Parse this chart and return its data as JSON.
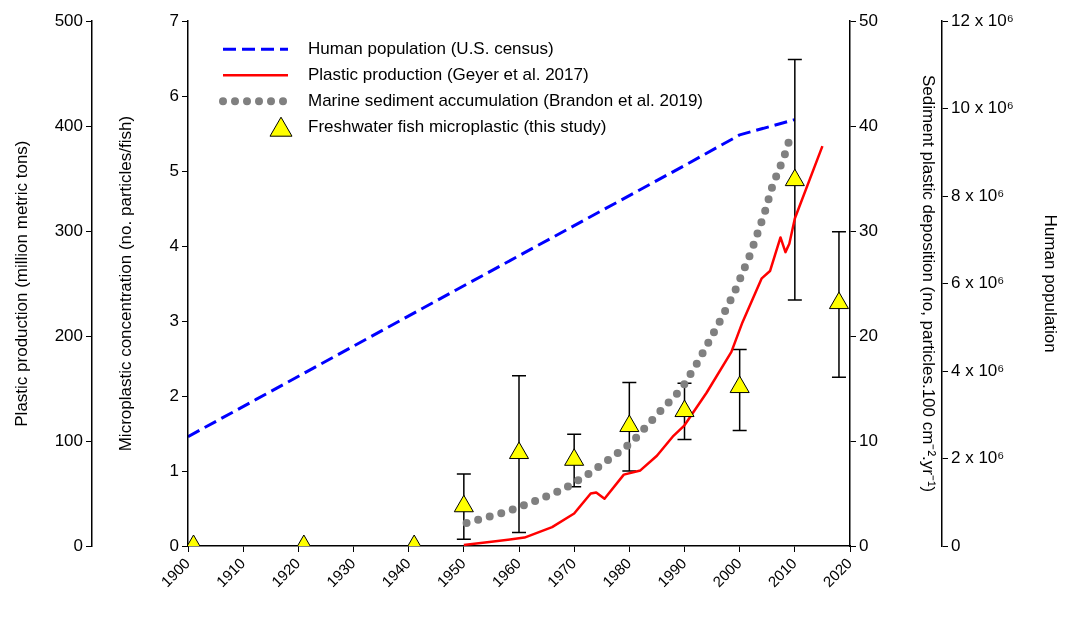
{
  "chart_data": [
    {
      "type": "line",
      "ylabel": "Human population",
      "xlim": [
        1900,
        2020
      ],
      "xticks": [
        1900,
        1910,
        1920,
        1930,
        1940,
        1950,
        1960,
        1970,
        1980,
        1990,
        2000,
        2010,
        2020
      ],
      "ylim": [
        0,
        12000000
      ],
      "yticks": [
        0,
        {
          "value": 2000000,
          "label": "2 x 10⁶"
        },
        {
          "value": 4000000,
          "label": "4 x 10⁶"
        },
        {
          "value": 6000000,
          "label": "6 x 10⁶"
        },
        {
          "value": 8000000,
          "label": "8 x 10⁶"
        },
        {
          "value": 10000000,
          "label": "10 x 10⁶"
        },
        {
          "value": 12000000,
          "label": "12 x 10⁶"
        }
      ],
      "tick_labels": "y",
      "grid": false,
      "legend": "top left",
      "series": [
        {
          "name": "Human population (U.S. census)",
          "color": "#0000ff",
          "line_style": "dashed",
          "marker": "none",
          "x": [
            1900,
            1950,
            1990,
            2000,
            2010
          ],
          "values": [
            2500000,
            5950000,
            8700000,
            9400000,
            9750000
          ]
        }
      ]
    },
    {
      "type": "line",
      "ylabel": "Plastic production (million metric tons)",
      "y2label": "Microplastic concentration (no. particles/fish)",
      "y3label": "Sediment plastic deposition (no, particles.100 cm⁻².yr⁻¹)",
      "xlim": [
        1900,
        2020
      ],
      "xticks": [
        1900,
        1910,
        1920,
        1930,
        1940,
        1950,
        1960,
        1970,
        1980,
        1990,
        2000,
        2010,
        2020
      ],
      "ylim": [
        0,
        500
      ],
      "yticks": [
        0,
        100,
        200,
        300,
        400,
        500
      ],
      "y2lim": [
        0,
        7
      ],
      "y2ticks": [
        0,
        1,
        2,
        3,
        4,
        5,
        6,
        7
      ],
      "y3lim": [
        0,
        50
      ],
      "y3ticks": [
        0,
        10,
        20,
        30,
        40,
        50
      ],
      "grid": false,
      "legend": "top left",
      "series": [
        {
          "name": "Plastic production (Geyer et al. 2017)",
          "color": "#ff0000",
          "line_style": "solid",
          "marker": "none",
          "x": [
            1950,
            1955,
            1961,
            1966,
            1970,
            1973,
            1974,
            1975.5,
            1979,
            1982,
            1985,
            1988,
            1990,
            1994,
            1998.5,
            2000.5,
            2004,
            2005.5,
            2007.4,
            2008.3,
            2009,
            2010,
            2015
          ],
          "values": [
            1,
            4,
            8,
            18,
            31,
            50,
            51,
            45,
            68,
            72,
            86,
            105,
            115,
            146,
            185,
            213,
            255,
            262,
            294,
            280,
            288,
            312,
            381
          ]
        },
        {
          "name": "Marine sediment accumulation (Brandon et al. 2019)",
          "axis": "y3",
          "color": "#808080",
          "line_style": "dotted",
          "marker": "none",
          "x": [
            1950.5,
            1958,
            1963,
            1968,
            1973,
            1978,
            1980.5,
            1985,
            1989.5,
            1992.5,
            1996.5,
            1999,
            2002,
            2004.5,
            2006,
            2008,
            2009.5
          ],
          "values": [
            2.2,
            3.3,
            4.3,
            5.4,
            7.0,
            8.9,
            9.9,
            12.5,
            15.0,
            17.6,
            21.5,
            24.1,
            27.9,
            31.7,
            34.4,
            37,
            39.5
          ]
        },
        {
          "name": "Freshwater fish microplastic (this study)",
          "type": "scatter",
          "axis": "y2",
          "color": "#ffff00",
          "marker": "triangle",
          "x": [
            1901,
            1921,
            1941,
            1950,
            1960,
            1970,
            1980,
            1990,
            2000,
            2010,
            2018
          ],
          "values": [
            0,
            0,
            0,
            0.53,
            1.24,
            1.15,
            1.6,
            1.8,
            2.12,
            4.88,
            3.24
          ],
          "errors": [
            null,
            null,
            null,
            [
              0.09,
              0.96
            ],
            [
              0.18,
              2.27
            ],
            [
              0.79,
              1.49
            ],
            [
              1.0,
              2.18
            ],
            [
              1.42,
              2.17
            ],
            [
              1.54,
              2.62
            ],
            [
              3.28,
              6.49
            ],
            [
              2.25,
              4.19
            ]
          ]
        }
      ]
    }
  ]
}
